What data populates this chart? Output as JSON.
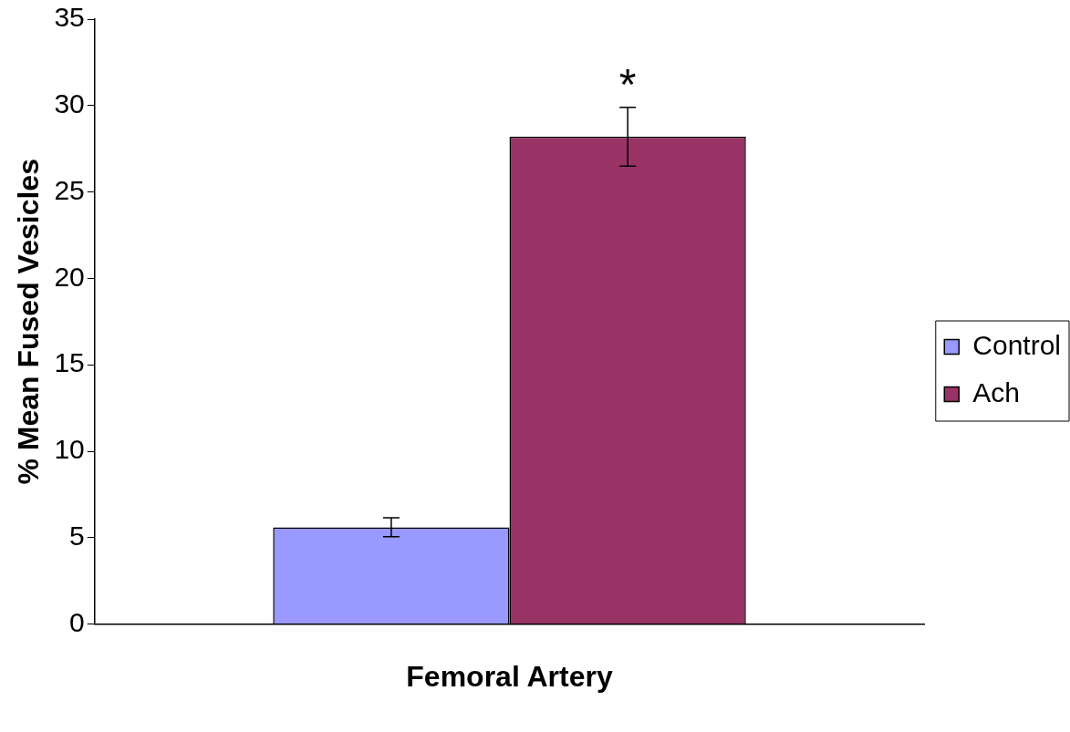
{
  "chart_data": {
    "type": "bar",
    "ylabel": "% Mean Fused Vesicles",
    "categories": [
      "Femoral Artery"
    ],
    "series": [
      {
        "name": "Control",
        "color": "#9999ff",
        "values": [
          5.6
        ],
        "errors": [
          0.55
        ]
      },
      {
        "name": "Ach",
        "color": "#993366",
        "values": [
          28.2
        ],
        "errors": [
          1.7
        ]
      }
    ],
    "ylim": [
      0,
      35
    ],
    "yticks": [
      0,
      5,
      10,
      15,
      20,
      25,
      30,
      35
    ],
    "grid": false,
    "legend": "right",
    "annotations": [
      "*"
    ]
  }
}
